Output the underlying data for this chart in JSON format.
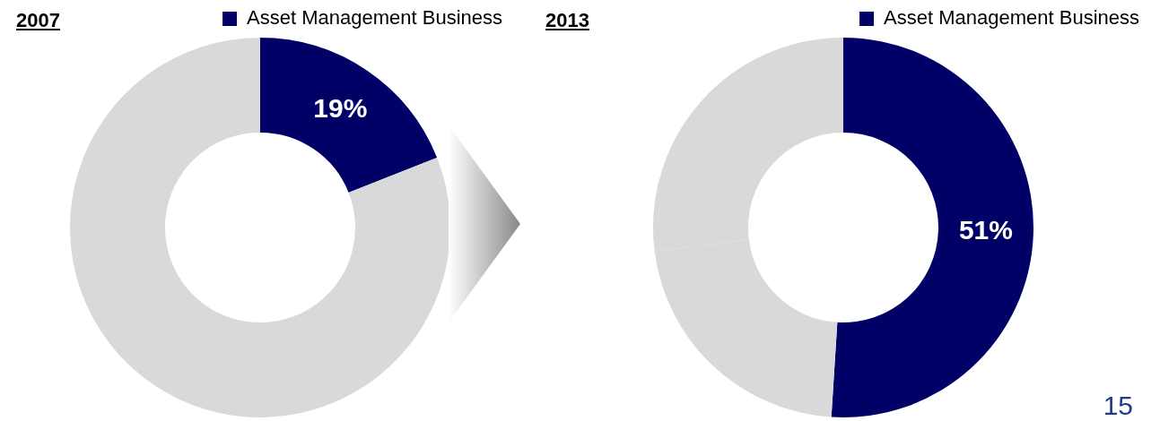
{
  "chart_data": [
    {
      "type": "donut",
      "title": "2007",
      "categories": [
        "Asset Management Business",
        null
      ],
      "values": [
        19,
        81
      ],
      "colors": [
        "#000066",
        "#d9d9d9"
      ],
      "value_labels": [
        "19%",
        null
      ],
      "legend": "top right"
    },
    {
      "type": "donut",
      "title": "2013",
      "categories": [
        "Asset Management Business",
        null,
        null
      ],
      "values": [
        51,
        22,
        27
      ],
      "colors": [
        "#000066",
        "#d9d9d9",
        "#d9d9d9"
      ],
      "value_labels": [
        "51%",
        null,
        null
      ],
      "legend": "top right",
      "annotations": [
        "15"
      ]
    }
  ]
}
